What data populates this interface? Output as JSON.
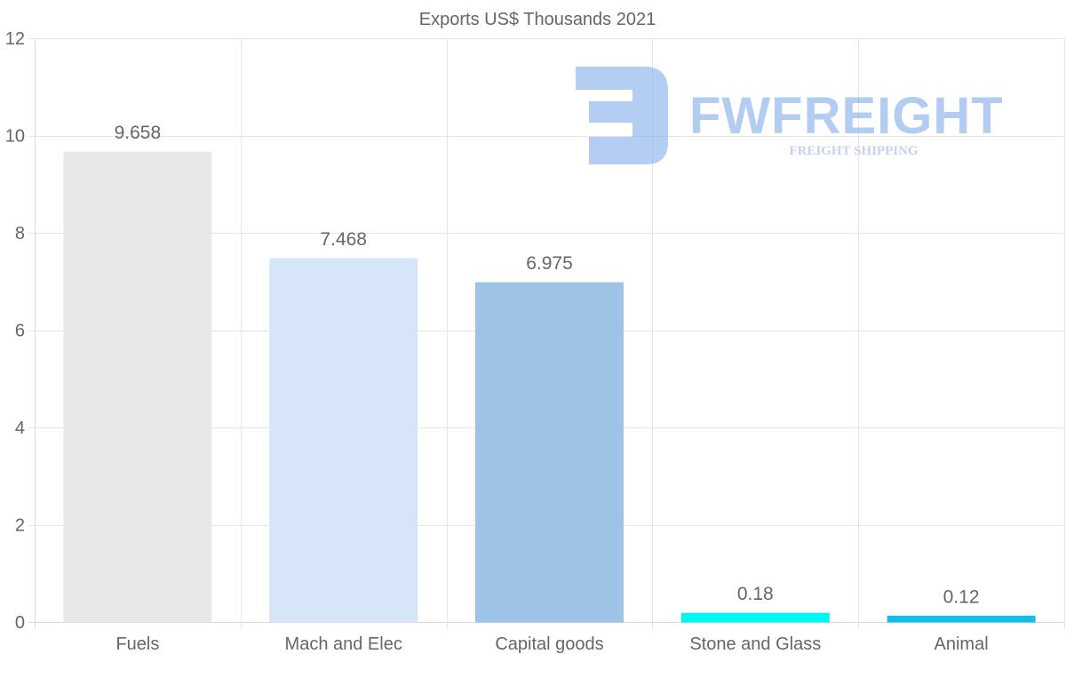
{
  "chart_data": {
    "type": "bar",
    "title": "Exports US$ Thousands 2021",
    "categories": [
      "Fuels",
      "Mach and Elec",
      "Capital goods",
      "Stone and Glass",
      "Animal"
    ],
    "values": [
      9.658,
      7.468,
      6.975,
      0.18,
      0.12
    ],
    "value_labels": [
      "9.658",
      "7.468",
      "6.975",
      "0.18",
      "0.12"
    ],
    "bar_colors": [
      "#e8e8e8",
      "#d6e6f8",
      "#9dc3e7",
      "#00f5f5",
      "#11bfef"
    ],
    "ylim": [
      0,
      12
    ],
    "yticks": [
      "0",
      "2",
      "4",
      "6",
      "8",
      "10",
      "12"
    ],
    "grid": true,
    "xlabel": "",
    "ylabel": ""
  },
  "watermark": {
    "brand": "FWFREIGHT",
    "tagline": "FREIGHT SHIPPING",
    "color": "#6f9fe8",
    "tagline_color": "#8fa9e8"
  }
}
